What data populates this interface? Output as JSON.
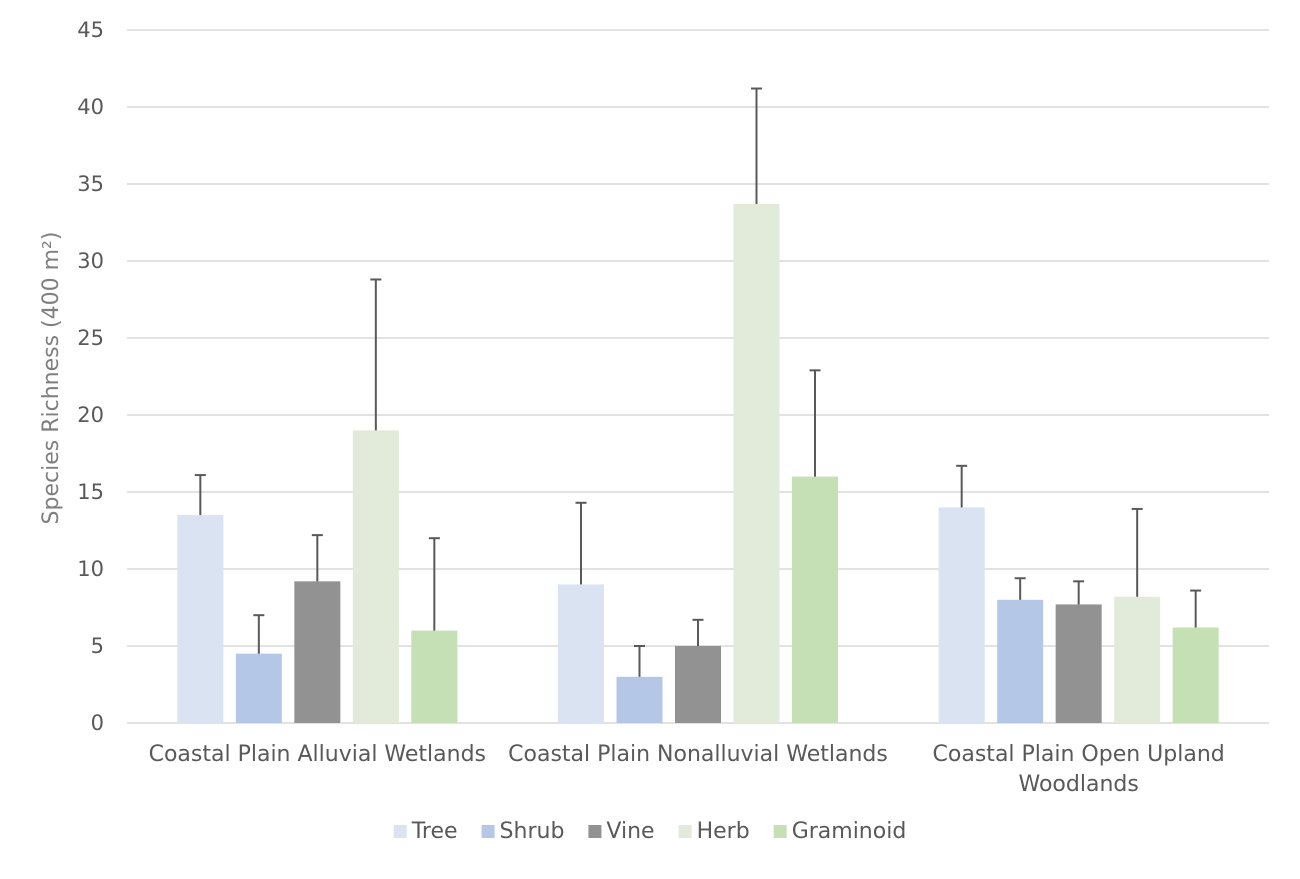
{
  "chart_data": {
    "type": "bar",
    "title": "",
    "xlabel": "",
    "ylabel": "Species Richness (400 m²)",
    "ylim": [
      0,
      45
    ],
    "ytick_step": 5,
    "grid": true,
    "legend_position": "bottom",
    "categories": [
      [
        "Coastal Plain Alluvial Wetlands"
      ],
      [
        "Coastal Plain Nonalluvial Wetlands"
      ],
      [
        "Coastal Plain Open Upland",
        "Woodlands"
      ]
    ],
    "series": [
      {
        "name": "Tree",
        "color": "#dae3f1",
        "values": [
          13.5,
          9.0,
          14.0
        ],
        "errors": [
          2.6,
          5.3,
          2.7
        ]
      },
      {
        "name": "Shrub",
        "color": "#b4c7e7",
        "values": [
          4.5,
          3.0,
          8.0
        ],
        "errors": [
          2.5,
          2.0,
          1.4
        ]
      },
      {
        "name": "Vine",
        "color": "#929292",
        "values": [
          9.2,
          5.0,
          7.7
        ],
        "errors": [
          3.0,
          1.7,
          1.5
        ]
      },
      {
        "name": "Herb",
        "color": "#e2ebd9",
        "values": [
          19.0,
          33.7,
          8.2
        ],
        "errors": [
          9.8,
          7.5,
          5.7
        ]
      },
      {
        "name": "Graminoid",
        "color": "#c5e0b4",
        "values": [
          6.0,
          16.0,
          6.2
        ],
        "errors": [
          6.0,
          6.9,
          2.4
        ]
      }
    ],
    "error_bar_color": "#595959",
    "gridline_color": "#d9d9d9"
  }
}
